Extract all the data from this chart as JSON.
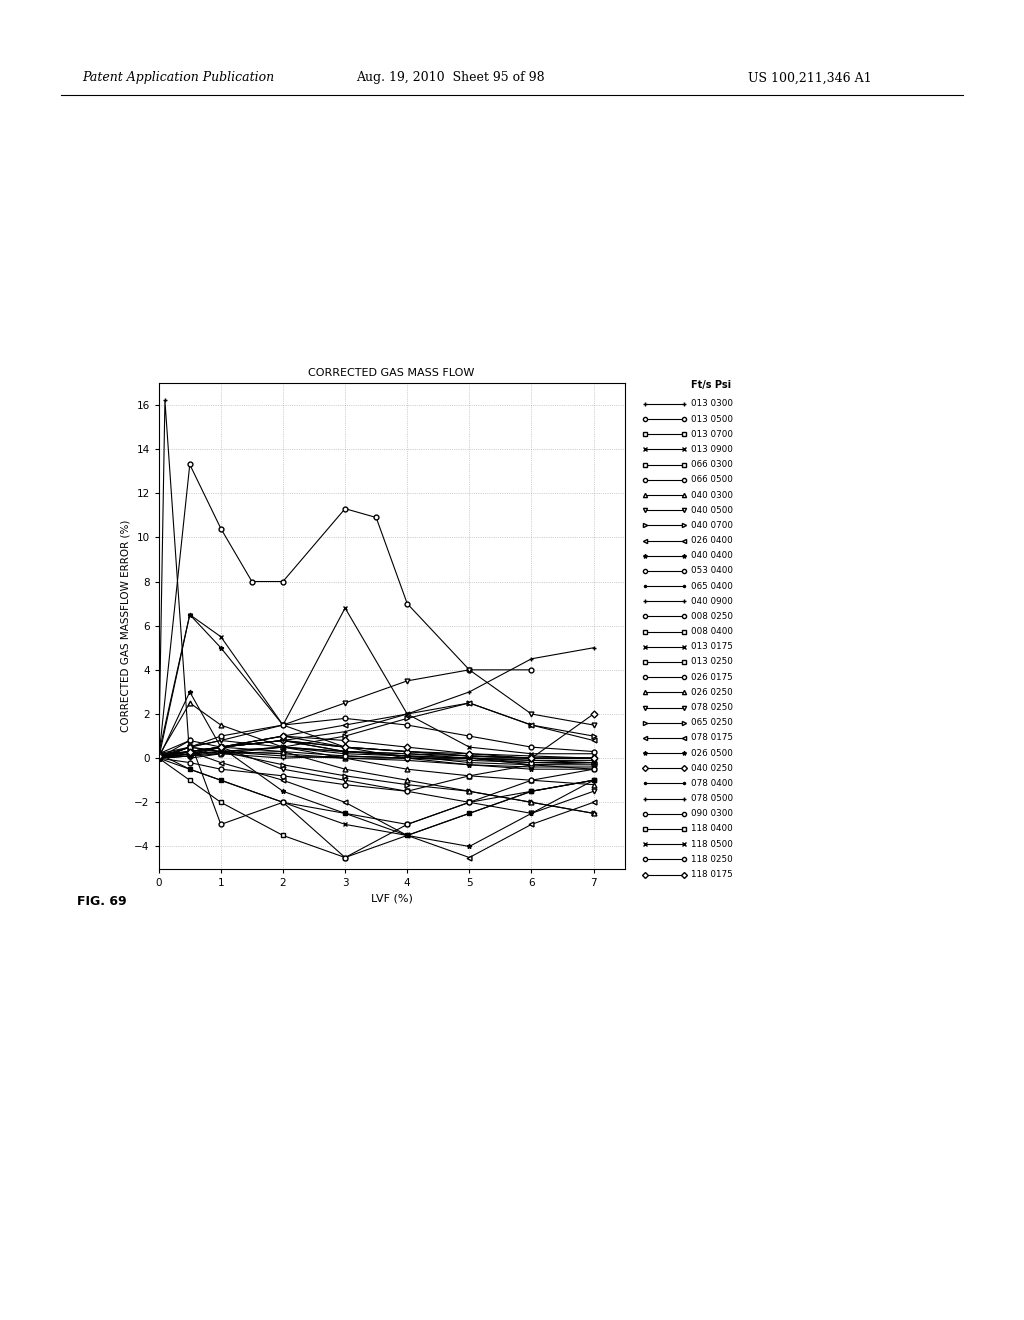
{
  "title": "CORRECTED GAS MASS FLOW",
  "xlabel": "LVF (%)",
  "ylabel": "CORRECTED GAS MASSFLOW ERROR (%)",
  "xlim": [
    0,
    7.5
  ],
  "ylim": [
    -5,
    17
  ],
  "yticks": [
    -4,
    -2,
    0,
    2,
    4,
    6,
    8,
    10,
    12,
    14,
    16
  ],
  "xticks": [
    0,
    1,
    2,
    3,
    4,
    5,
    6,
    7
  ],
  "fig_caption": "FIG. 69",
  "header_left": "Patent Application Publication",
  "header_center": "Aug. 19, 2010  Sheet 95 of 98",
  "header_right": "US 100,211,346 A1",
  "legend_title": "Ft/s Psi",
  "series": [
    {
      "label": "013 0300",
      "marker": "+",
      "x": [
        0.0,
        0.1,
        0.5,
        1.0,
        2.0,
        3.0,
        4.0,
        5.0,
        6.0,
        7.0
      ],
      "y": [
        0.0,
        16.2,
        0.0,
        0.2,
        0.0,
        0.1,
        0.0,
        0.0,
        0.0,
        0.0
      ]
    },
    {
      "label": "013 0500",
      "marker": "o",
      "x": [
        0.0,
        0.5,
        1.0,
        1.5,
        2.0,
        3.0,
        3.5,
        4.0,
        5.0,
        6.0
      ],
      "y": [
        0.0,
        13.3,
        10.4,
        8.0,
        8.0,
        11.3,
        10.9,
        7.0,
        4.0,
        4.0
      ]
    },
    {
      "label": "013 0700",
      "marker": "s",
      "x": [
        0.0,
        0.5,
        1.0,
        2.0,
        3.0,
        4.0,
        5.0,
        6.0,
        7.0
      ],
      "y": [
        0.0,
        0.5,
        0.3,
        0.1,
        0.0,
        0.0,
        0.0,
        -0.3,
        -0.5
      ]
    },
    {
      "label": "013 0900",
      "marker": "x",
      "x": [
        0.0,
        0.5,
        1.0,
        2.0,
        3.0,
        4.0,
        5.0,
        6.0,
        7.0
      ],
      "y": [
        0.0,
        6.5,
        5.5,
        1.5,
        6.8,
        2.0,
        0.5,
        0.2,
        0.2
      ]
    },
    {
      "label": "066 0300",
      "marker": "s",
      "x": [
        0.0,
        0.5,
        1.0,
        2.0,
        3.0,
        4.0,
        5.0,
        6.0,
        7.0
      ],
      "y": [
        0.2,
        0.3,
        0.5,
        0.8,
        0.3,
        0.2,
        0.1,
        0.0,
        0.0
      ]
    },
    {
      "label": "066 0500",
      "marker": "o",
      "x": [
        0.0,
        0.5,
        1.0,
        2.0,
        3.0,
        4.0,
        5.0,
        6.0,
        7.0
      ],
      "y": [
        0.0,
        0.1,
        0.5,
        1.0,
        0.5,
        0.3,
        0.2,
        0.1,
        0.0
      ]
    },
    {
      "label": "040 0300",
      "marker": "^",
      "x": [
        0.0,
        0.5,
        1.0,
        2.0,
        3.0,
        4.0,
        5.0,
        6.0,
        7.0
      ],
      "y": [
        0.1,
        2.5,
        1.5,
        0.5,
        0.0,
        -0.5,
        -0.8,
        -1.0,
        -1.2
      ]
    },
    {
      "label": "040 0500",
      "marker": "v",
      "x": [
        0.0,
        0.5,
        1.0,
        2.0,
        3.0,
        4.0,
        5.0,
        6.0,
        7.0
      ],
      "y": [
        0.1,
        0.3,
        0.5,
        -0.5,
        -1.0,
        -1.5,
        -2.0,
        -2.5,
        -1.5
      ]
    },
    {
      "label": "040 0700",
      "marker": ">",
      "x": [
        0.0,
        0.5,
        1.0,
        2.0,
        3.0,
        4.0,
        5.0,
        6.0,
        7.0
      ],
      "y": [
        0.0,
        0.5,
        0.3,
        -0.3,
        -0.8,
        -1.2,
        -1.5,
        -2.0,
        -2.5
      ]
    },
    {
      "label": "026 0400",
      "marker": "<",
      "x": [
        0.0,
        0.5,
        1.0,
        2.0,
        3.0,
        4.0,
        5.0,
        6.0,
        7.0
      ],
      "y": [
        0.0,
        0.3,
        -0.2,
        -1.0,
        -2.0,
        -3.5,
        -4.5,
        -3.0,
        -2.0
      ]
    },
    {
      "label": "040 0400",
      "marker": "*",
      "x": [
        0.0,
        0.5,
        1.0,
        2.0,
        3.0,
        4.0,
        5.0,
        6.0,
        7.0
      ],
      "y": [
        0.2,
        6.5,
        5.0,
        1.5,
        0.5,
        0.0,
        -0.3,
        -0.5,
        -0.5
      ]
    },
    {
      "label": "053 0400",
      "marker": "o",
      "x": [
        0.0,
        0.5,
        1.0,
        2.0,
        3.0,
        4.0,
        5.0,
        6.0,
        7.0
      ],
      "y": [
        0.0,
        0.3,
        0.5,
        0.8,
        0.3,
        0.1,
        -0.2,
        -0.3,
        -0.3
      ]
    },
    {
      "label": "065 0400",
      "marker": ".",
      "x": [
        0.0,
        0.5,
        1.0,
        2.0,
        3.0,
        4.0,
        5.0,
        6.0,
        7.0
      ],
      "y": [
        0.0,
        0.2,
        0.3,
        0.2,
        0.0,
        -0.1,
        -0.3,
        -0.4,
        -0.4
      ]
    },
    {
      "label": "040 0900",
      "marker": "+",
      "x": [
        0.0,
        0.5,
        1.0,
        2.0,
        3.0,
        4.0,
        5.0,
        6.0,
        7.0
      ],
      "y": [
        0.1,
        0.5,
        0.8,
        0.5,
        0.3,
        0.2,
        0.0,
        -0.2,
        -0.2
      ]
    },
    {
      "label": "008 0250",
      "marker": "o",
      "x": [
        0.0,
        0.5,
        1.0,
        2.0,
        3.0,
        4.0,
        5.0,
        6.0,
        7.0
      ],
      "y": [
        0.0,
        -0.2,
        -0.5,
        -0.8,
        -1.2,
        -1.5,
        -0.8,
        -0.3,
        -0.2
      ]
    },
    {
      "label": "008 0400",
      "marker": "s",
      "x": [
        0.0,
        0.5,
        1.0,
        2.0,
        3.0,
        4.0,
        5.0,
        6.0,
        7.0
      ],
      "y": [
        0.2,
        -0.5,
        -1.0,
        -2.0,
        -2.5,
        -3.0,
        -2.0,
        -1.5,
        -1.0
      ]
    },
    {
      "label": "013 0175",
      "marker": "x",
      "x": [
        0.0,
        0.5,
        1.0,
        2.0,
        3.0,
        4.0,
        5.0,
        6.0,
        7.0
      ],
      "y": [
        0.1,
        0.3,
        0.5,
        0.8,
        0.5,
        0.3,
        0.1,
        0.0,
        0.0
      ]
    },
    {
      "label": "013 0250",
      "marker": "s",
      "x": [
        0.0,
        0.5,
        1.0,
        2.0,
        3.0,
        4.0,
        5.0,
        6.0,
        7.0
      ],
      "y": [
        0.0,
        0.2,
        0.3,
        0.5,
        0.2,
        0.1,
        0.0,
        -0.1,
        -0.1
      ]
    },
    {
      "label": "026 0175",
      "marker": "o",
      "x": [
        0.0,
        0.5,
        1.0,
        2.0,
        3.0,
        4.0,
        5.0,
        6.0,
        7.0
      ],
      "y": [
        0.0,
        0.1,
        0.2,
        0.3,
        0.1,
        0.0,
        -0.1,
        -0.2,
        -0.2
      ]
    },
    {
      "label": "026 0250",
      "marker": "^",
      "x": [
        0.0,
        0.5,
        1.0,
        2.0,
        3.0,
        4.0,
        5.0,
        6.0,
        7.0
      ],
      "y": [
        0.0,
        0.8,
        0.5,
        0.3,
        -0.5,
        -1.0,
        -1.5,
        -2.0,
        -2.5
      ]
    },
    {
      "label": "078 0250",
      "marker": "v",
      "x": [
        0.0,
        0.5,
        1.0,
        2.0,
        3.0,
        4.0,
        5.0,
        6.0,
        7.0
      ],
      "y": [
        0.0,
        0.5,
        0.8,
        1.5,
        2.5,
        3.5,
        4.0,
        2.0,
        1.5
      ]
    },
    {
      "label": "065 0250",
      "marker": ">",
      "x": [
        0.0,
        0.5,
        1.0,
        2.0,
        3.0,
        4.0,
        5.0,
        6.0,
        7.0
      ],
      "y": [
        0.1,
        0.3,
        0.2,
        0.5,
        1.0,
        1.8,
        2.5,
        1.5,
        1.0
      ]
    },
    {
      "label": "078 0175",
      "marker": "<",
      "x": [
        0.0,
        0.5,
        1.0,
        2.0,
        3.0,
        4.0,
        5.0,
        6.0,
        7.0
      ],
      "y": [
        0.0,
        0.3,
        0.5,
        1.0,
        1.5,
        2.0,
        2.5,
        1.5,
        0.8
      ]
    },
    {
      "label": "026 0500",
      "marker": "*",
      "x": [
        0.0,
        0.5,
        1.0,
        2.0,
        3.0,
        4.0,
        5.0,
        6.0,
        7.0
      ],
      "y": [
        0.0,
        3.0,
        0.5,
        -1.5,
        -2.5,
        -3.5,
        -4.0,
        -2.5,
        -1.0
      ]
    },
    {
      "label": "040 0250",
      "marker": "D",
      "x": [
        0.0,
        0.5,
        1.0,
        2.0,
        3.0,
        4.0,
        5.0,
        6.0,
        7.0
      ],
      "y": [
        0.0,
        0.2,
        0.5,
        0.8,
        0.5,
        0.3,
        0.1,
        0.0,
        0.0
      ]
    },
    {
      "label": "078 0400",
      "marker": ".",
      "x": [
        0.0,
        0.5,
        1.0,
        2.0,
        3.0,
        4.0,
        5.0,
        6.0,
        7.0
      ],
      "y": [
        0.0,
        0.1,
        0.3,
        0.5,
        0.3,
        0.1,
        0.0,
        -0.1,
        -0.2
      ]
    },
    {
      "label": "078 0500",
      "marker": "+",
      "x": [
        0.0,
        0.5,
        1.0,
        2.0,
        3.0,
        4.0,
        5.0,
        6.0,
        7.0
      ],
      "y": [
        0.0,
        0.2,
        0.5,
        0.8,
        1.2,
        2.0,
        3.0,
        4.5,
        5.0
      ]
    },
    {
      "label": "090 0300",
      "marker": "o",
      "x": [
        0.0,
        0.5,
        1.0,
        2.0,
        3.0,
        4.0,
        5.0,
        6.0,
        7.0
      ],
      "y": [
        0.2,
        0.5,
        1.0,
        1.5,
        1.8,
        1.5,
        1.0,
        0.5,
        0.3
      ]
    },
    {
      "label": "118 0400",
      "marker": "s",
      "x": [
        0.0,
        0.5,
        1.0,
        2.0,
        3.0,
        4.0,
        5.0,
        6.0,
        7.0
      ],
      "y": [
        0.0,
        -1.0,
        -2.0,
        -3.5,
        -4.5,
        -3.5,
        -2.5,
        -1.5,
        -1.0
      ]
    },
    {
      "label": "118 0500",
      "marker": "x",
      "x": [
        0.0,
        0.5,
        1.0,
        2.0,
        3.0,
        4.0,
        5.0,
        6.0,
        7.0
      ],
      "y": [
        0.0,
        -0.5,
        -1.0,
        -2.0,
        -3.0,
        -3.5,
        -2.5,
        -1.5,
        -1.0
      ]
    },
    {
      "label": "118 0250",
      "marker": "o",
      "x": [
        0.0,
        0.5,
        1.0,
        2.0,
        3.0,
        4.0,
        5.0,
        6.0,
        7.0
      ],
      "y": [
        0.2,
        0.8,
        -3.0,
        -2.0,
        -4.5,
        -3.0,
        -2.0,
        -1.0,
        -0.5
      ]
    },
    {
      "label": "118 0175",
      "marker": "D",
      "x": [
        0.0,
        0.5,
        1.0,
        2.0,
        3.0,
        4.0,
        5.0,
        6.0,
        7.0
      ],
      "y": [
        0.1,
        0.3,
        0.5,
        1.0,
        0.8,
        0.5,
        0.2,
        0.0,
        2.0
      ]
    }
  ]
}
